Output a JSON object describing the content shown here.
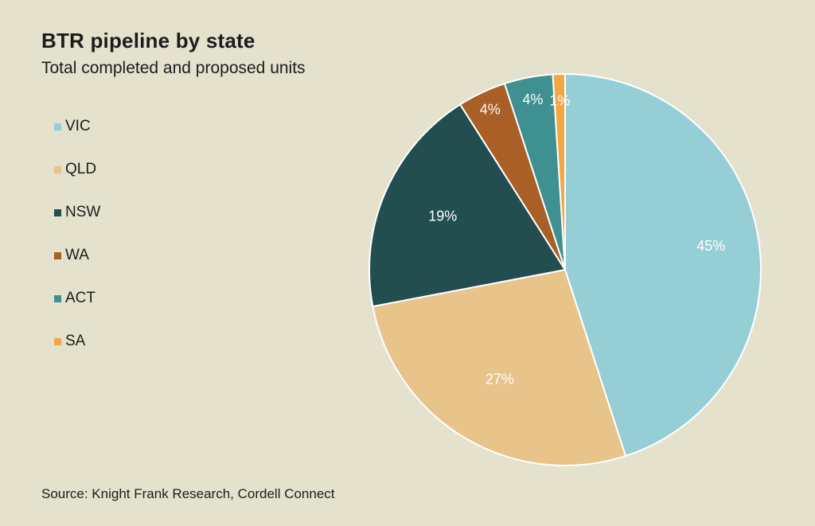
{
  "chart_data": {
    "type": "pie",
    "title": "BTR pipeline by state",
    "subtitle": "Total completed and proposed units",
    "source": "Source: Knight Frank Research, Cordell Connect",
    "legend_position": "left",
    "categories": [
      "VIC",
      "QLD",
      "NSW",
      "WA",
      "ACT",
      "SA"
    ],
    "values": [
      45,
      27,
      19,
      4,
      4,
      1
    ],
    "labels": [
      "45%",
      "27%",
      "19%",
      "4%",
      "4%",
      "1%"
    ],
    "colors": [
      "#96ced6",
      "#e8c38a",
      "#224e50",
      "#a95f25",
      "#3f9090",
      "#f2a644"
    ]
  }
}
